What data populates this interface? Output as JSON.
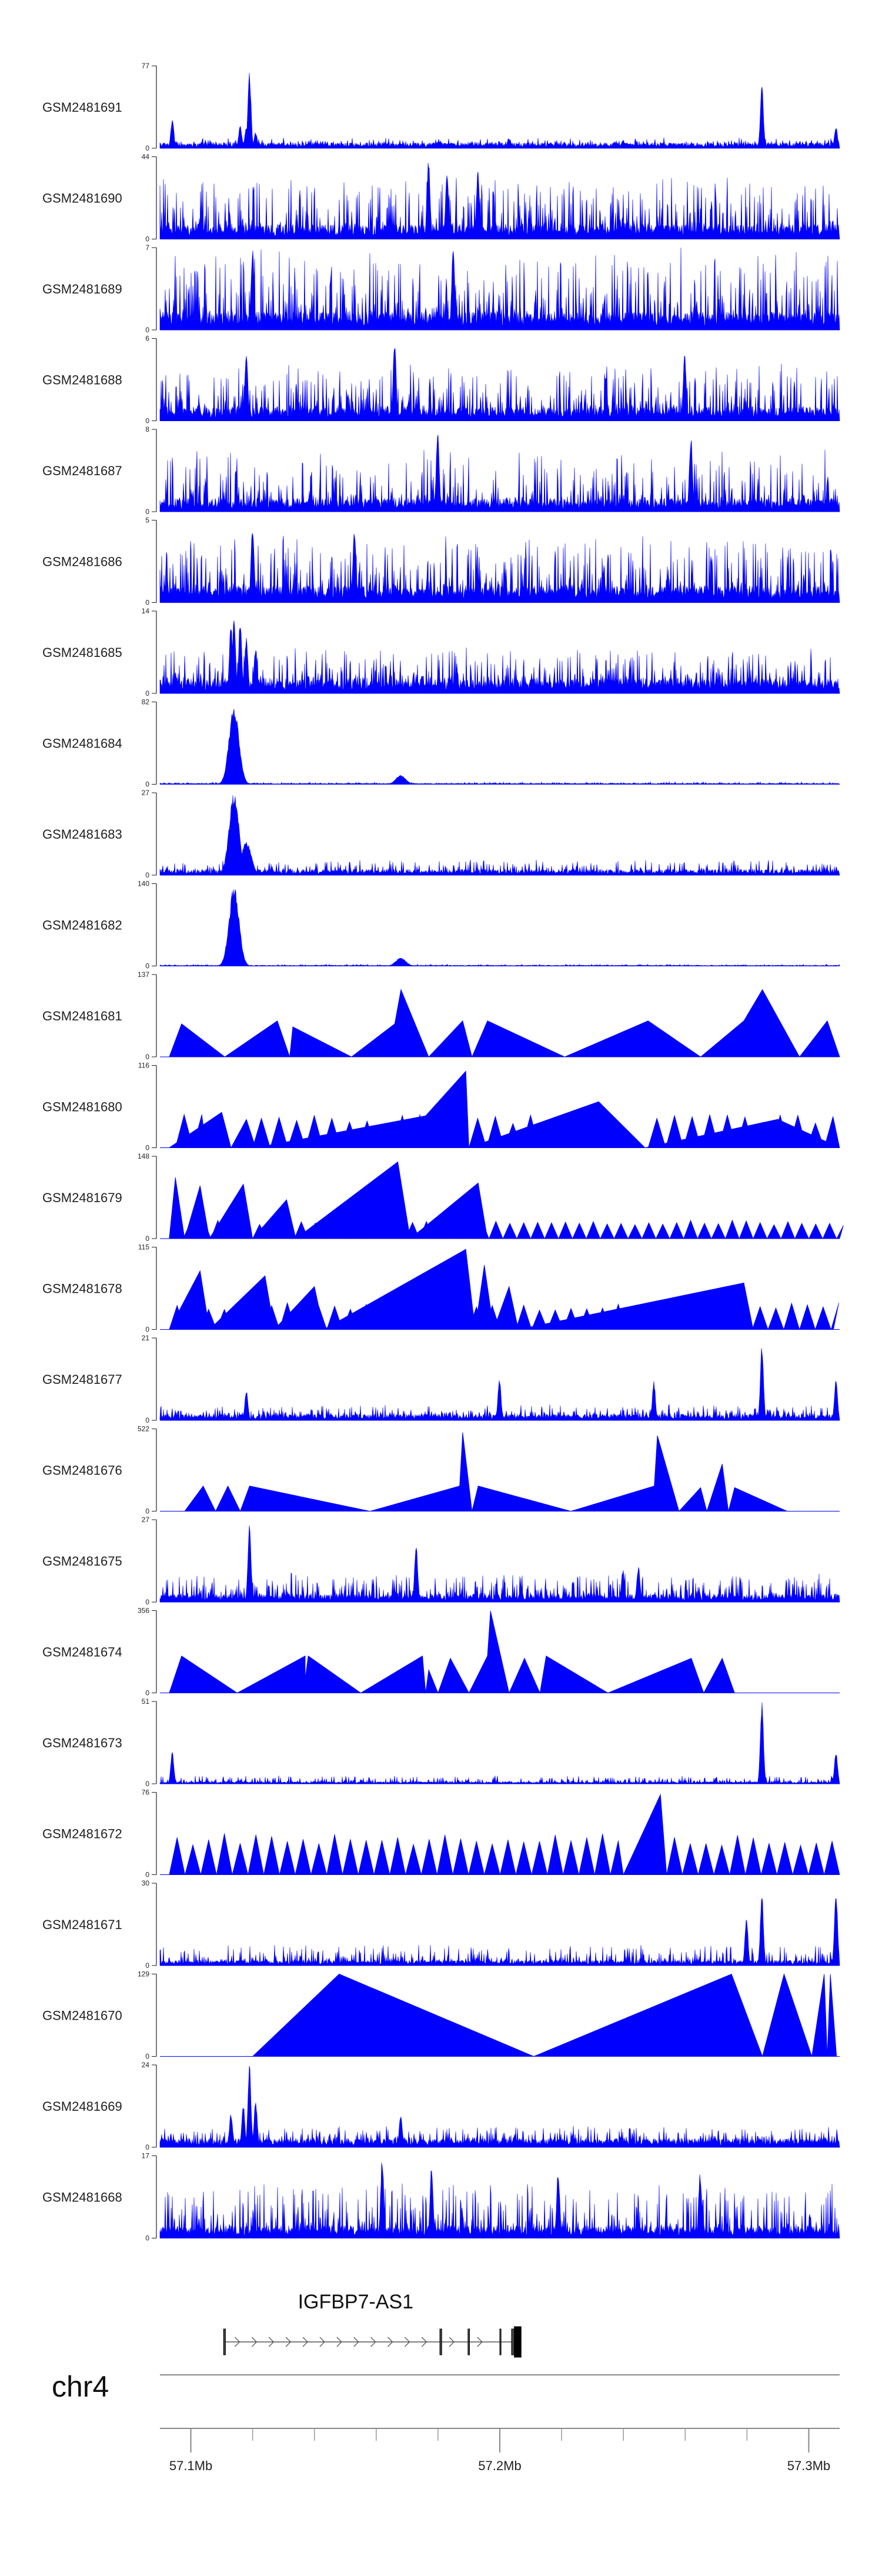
{
  "chart_data": {
    "type": "area",
    "genome": {
      "chromosome": "chr4",
      "range_mb": [
        57.09,
        57.31
      ],
      "axis_ticks": [
        {
          "mb": 57.1,
          "label": "57.1Mb"
        },
        {
          "mb": 57.2,
          "label": "57.2Mb"
        },
        {
          "mb": 57.3,
          "label": "57.3Mb"
        }
      ],
      "minor_ticks_mb": [
        57.1,
        57.12,
        57.14,
        57.16,
        57.18,
        57.2,
        57.22,
        57.24,
        57.26,
        57.28,
        57.3
      ]
    },
    "color": "#0000ff",
    "tracks": [
      {
        "name": "GSM2481691",
        "ymax": 77,
        "style": "spiky",
        "baseline": 4,
        "noise": 5,
        "peaks": [
          [
            57.094,
            28
          ],
          [
            57.116,
            22
          ],
          [
            57.118,
            20
          ],
          [
            57.119,
            72
          ],
          [
            57.121,
            15
          ],
          [
            57.203,
            10
          ],
          [
            57.24,
            8
          ],
          [
            57.285,
            58
          ],
          [
            57.309,
            20
          ]
        ]
      },
      {
        "name": "GSM2481690",
        "ymax": 44,
        "style": "spiky",
        "baseline": 6,
        "noise": 26,
        "peaks": [
          [
            57.177,
            44
          ],
          [
            57.183,
            36
          ],
          [
            57.193,
            38
          ]
        ]
      },
      {
        "name": "GSM2481689",
        "ymax": 7,
        "style": "spiky",
        "baseline": 1.2,
        "noise": 5.6,
        "peaks": [
          [
            57.12,
            7
          ],
          [
            57.185,
            7
          ]
        ]
      },
      {
        "name": "GSM2481688",
        "ymax": 6,
        "style": "spiky",
        "baseline": 0.8,
        "noise": 3.2,
        "peaks": [
          [
            57.166,
            6
          ],
          [
            57.118,
            5
          ],
          [
            57.26,
            5
          ]
        ]
      },
      {
        "name": "GSM2481687",
        "ymax": 8,
        "style": "spiky",
        "baseline": 1.0,
        "noise": 4.8,
        "peaks": [
          [
            57.18,
            8
          ],
          [
            57.262,
            7.5
          ]
        ]
      },
      {
        "name": "GSM2481686",
        "ymax": 5,
        "style": "spiky",
        "baseline": 0.8,
        "noise": 3.2,
        "peaks": [
          [
            57.12,
            4.8
          ],
          [
            57.153,
            4.6
          ]
        ]
      },
      {
        "name": "GSM2481685",
        "ymax": 14,
        "style": "spiky",
        "baseline": 2,
        "noise": 5.5,
        "peaks": [
          [
            57.113,
            12
          ],
          [
            57.114,
            14
          ],
          [
            57.116,
            13
          ],
          [
            57.118,
            10
          ],
          [
            57.121,
            8
          ]
        ]
      },
      {
        "name": "GSM2481684",
        "ymax": 82,
        "style": "peak",
        "baseline": 0.8,
        "noise": 1.5,
        "peaks": [
          [
            57.114,
            78
          ],
          [
            57.168,
            9
          ]
        ]
      },
      {
        "name": "GSM2481683",
        "ymax": 27,
        "style": "peak",
        "baseline": 1.5,
        "noise": 3.5,
        "peaks": [
          [
            57.114,
            27
          ],
          [
            57.118,
            11
          ]
        ]
      },
      {
        "name": "GSM2481682",
        "ymax": 140,
        "style": "peak",
        "baseline": 1,
        "noise": 2,
        "peaks": [
          [
            57.114,
            135
          ],
          [
            57.168,
            14
          ]
        ]
      },
      {
        "name": "GSM2481681",
        "ymax": 137,
        "style": "sparse",
        "points": [
          [
            57.093,
            0
          ],
          [
            57.097,
            55
          ],
          [
            57.111,
            0
          ],
          [
            57.128,
            60
          ],
          [
            57.132,
            0
          ],
          [
            57.133,
            50
          ],
          [
            57.152,
            0
          ],
          [
            57.166,
            55
          ],
          [
            57.168,
            112
          ],
          [
            57.177,
            0
          ],
          [
            57.188,
            60
          ],
          [
            57.191,
            0
          ],
          [
            57.196,
            60
          ],
          [
            57.221,
            0
          ],
          [
            57.248,
            60
          ],
          [
            57.265,
            0
          ],
          [
            57.279,
            60
          ],
          [
            57.285,
            112
          ],
          [
            57.297,
            0
          ],
          [
            57.306,
            60
          ],
          [
            57.31,
            0
          ]
        ]
      },
      {
        "name": "GSM2481680",
        "ymax": 116,
        "style": "sparse",
        "points": [
          [
            57.093,
            0
          ],
          [
            57.11,
            50
          ],
          [
            57.113,
            0
          ],
          [
            57.118,
            40
          ],
          [
            57.121,
            0
          ],
          [
            57.176,
            45
          ],
          [
            57.189,
            108
          ],
          [
            57.19,
            0
          ],
          [
            57.232,
            65
          ],
          [
            57.247,
            0
          ],
          [
            57.29,
            40
          ],
          [
            57.31,
            0
          ]
        ],
        "teeth": [
          [
            57.095,
            57.105,
            45
          ],
          [
            57.12,
            57.175,
            40
          ],
          [
            57.19,
            57.232,
            40
          ],
          [
            57.248,
            57.31,
            40
          ]
        ]
      },
      {
        "name": "GSM2481679",
        "ymax": 148,
        "style": "sparse",
        "points": [
          [
            57.093,
            0
          ],
          [
            57.095,
            110
          ],
          [
            57.098,
            0
          ],
          [
            57.103,
            95
          ],
          [
            57.106,
            0
          ],
          [
            57.117,
            98
          ],
          [
            57.12,
            0
          ],
          [
            57.131,
            70
          ],
          [
            57.134,
            0
          ],
          [
            57.167,
            138
          ],
          [
            57.171,
            0
          ],
          [
            57.193,
            100
          ],
          [
            57.196,
            0
          ]
        ],
        "teeth": [
          [
            57.093,
            57.31,
            28
          ]
        ]
      },
      {
        "name": "GSM2481678",
        "ymax": 115,
        "style": "sparse",
        "points": [
          [
            57.093,
            0
          ],
          [
            57.103,
            82
          ],
          [
            57.106,
            0
          ],
          [
            57.124,
            75
          ],
          [
            57.127,
            0
          ],
          [
            57.14,
            60
          ],
          [
            57.143,
            0
          ],
          [
            57.189,
            112
          ],
          [
            57.192,
            0
          ],
          [
            57.195,
            90
          ],
          [
            57.198,
            0
          ],
          [
            57.203,
            60
          ],
          [
            57.206,
            0
          ],
          [
            57.279,
            65
          ],
          [
            57.282,
            0
          ]
        ],
        "teeth": [
          [
            57.093,
            57.308,
            32
          ]
        ]
      },
      {
        "name": "GSM2481677",
        "ymax": 21,
        "style": "spiky",
        "baseline": 1.2,
        "noise": 2.8,
        "peaks": [
          [
            57.118,
            8
          ],
          [
            57.2,
            11
          ],
          [
            57.25,
            10
          ],
          [
            57.285,
            20
          ],
          [
            57.309,
            11
          ]
        ]
      },
      {
        "name": "GSM2481676",
        "ymax": 522,
        "style": "sparse",
        "points": [
          [
            57.098,
            0
          ],
          [
            57.104,
            160
          ],
          [
            57.108,
            0
          ],
          [
            57.112,
            160
          ],
          [
            57.116,
            0
          ],
          [
            57.119,
            160
          ],
          [
            57.158,
            0
          ],
          [
            57.187,
            160
          ],
          [
            57.188,
            500
          ],
          [
            57.191,
            0
          ],
          [
            57.193,
            160
          ],
          [
            57.223,
            0
          ],
          [
            57.25,
            160
          ],
          [
            57.251,
            480
          ],
          [
            57.258,
            0
          ],
          [
            57.265,
            150
          ],
          [
            57.267,
            0
          ],
          [
            57.272,
            300
          ],
          [
            57.274,
            0
          ],
          [
            57.276,
            150
          ],
          [
            57.293,
            0
          ]
        ]
      },
      {
        "name": "GSM2481675",
        "ymax": 27,
        "style": "spiky",
        "baseline": 2,
        "noise": 7,
        "peaks": [
          [
            57.119,
            26
          ],
          [
            57.173,
            19
          ],
          [
            57.24,
            11
          ],
          [
            57.245,
            12
          ]
        ]
      },
      {
        "name": "GSM2481674",
        "ymax": 356,
        "style": "sparse",
        "points": [
          [
            57.093,
            0
          ],
          [
            57.097,
            160
          ],
          [
            57.115,
            0
          ],
          [
            57.137,
            160
          ],
          [
            57.137,
            60
          ],
          [
            57.138,
            160
          ],
          [
            57.155,
            0
          ],
          [
            57.175,
            160
          ],
          [
            57.176,
            0
          ],
          [
            57.177,
            100
          ],
          [
            57.18,
            0
          ],
          [
            57.184,
            150
          ],
          [
            57.19,
            0
          ],
          [
            57.196,
            160
          ],
          [
            57.197,
            355
          ],
          [
            57.203,
            0
          ],
          [
            57.208,
            150
          ],
          [
            57.213,
            0
          ],
          [
            57.215,
            160
          ],
          [
            57.235,
            0
          ],
          [
            57.262,
            150
          ],
          [
            57.266,
            0
          ],
          [
            57.272,
            150
          ],
          [
            57.276,
            0
          ],
          [
            57.29,
            0
          ]
        ],
        "teeth": [
          [
            57.176,
            57.235,
            0
          ]
        ]
      },
      {
        "name": "GSM2481673",
        "ymax": 51,
        "style": "spiky",
        "baseline": 1,
        "noise": 4,
        "peaks": [
          [
            57.094,
            20
          ],
          [
            57.285,
            51
          ],
          [
            57.309,
            20
          ]
        ]
      },
      {
        "name": "GSM2481672",
        "ymax": 76,
        "style": "sparse",
        "points": [
          [
            57.093,
            0
          ],
          [
            57.093,
            0
          ],
          [
            57.24,
            0
          ],
          [
            57.252,
            74
          ],
          [
            57.254,
            0
          ]
        ],
        "teeth": [
          [
            57.093,
            57.24,
            32
          ],
          [
            57.254,
            57.31,
            32
          ]
        ]
      },
      {
        "name": "GSM2481671",
        "ymax": 30,
        "style": "spiky",
        "baseline": 1.5,
        "noise": 6,
        "peaks": [
          [
            57.285,
            27
          ],
          [
            57.309,
            28
          ],
          [
            57.28,
            18
          ]
        ]
      },
      {
        "name": "GSM2481670",
        "ymax": 129,
        "style": "sparse",
        "points": [
          [
            57.12,
            0
          ],
          [
            57.148,
            129
          ],
          [
            57.211,
            0
          ],
          [
            57.275,
            129
          ],
          [
            57.285,
            0
          ],
          [
            57.292,
            129
          ],
          [
            57.301,
            0
          ],
          [
            57.305,
            129
          ],
          [
            57.306,
            0
          ],
          [
            57.307,
            129
          ],
          [
            57.309,
            0
          ]
        ]
      },
      {
        "name": "GSM2481669",
        "ymax": 24,
        "style": "spiky",
        "baseline": 2,
        "noise": 4,
        "peaks": [
          [
            57.117,
            13
          ],
          [
            57.119,
            24
          ],
          [
            57.121,
            14
          ],
          [
            57.113,
            10
          ],
          [
            57.168,
            10
          ]
        ]
      },
      {
        "name": "GSM2481668",
        "ymax": 17,
        "style": "spiky",
        "baseline": 2,
        "noise": 9,
        "peaks": [
          [
            57.162,
            17
          ],
          [
            57.178,
            15
          ],
          [
            57.219,
            14
          ],
          [
            57.265,
            14
          ]
        ]
      }
    ],
    "genes": [
      {
        "name": "IGFBP7-AS1",
        "start_mb": 57.1112,
        "end_mb": 57.2069,
        "strand": "+",
        "introns": [
          [
            57.1112,
            57.1806
          ],
          [
            57.1806,
            57.1897
          ],
          [
            57.1897,
            57.2
          ],
          [
            57.2,
            57.2038
          ]
        ],
        "exons": [
          [
            57.1106,
            57.1112
          ],
          [
            57.1806,
            57.1812
          ],
          [
            57.1897,
            57.1902
          ],
          [
            57.2,
            57.2004
          ],
          [
            57.2038,
            57.2047
          ],
          [
            57.2047,
            57.2069
          ]
        ]
      }
    ]
  }
}
